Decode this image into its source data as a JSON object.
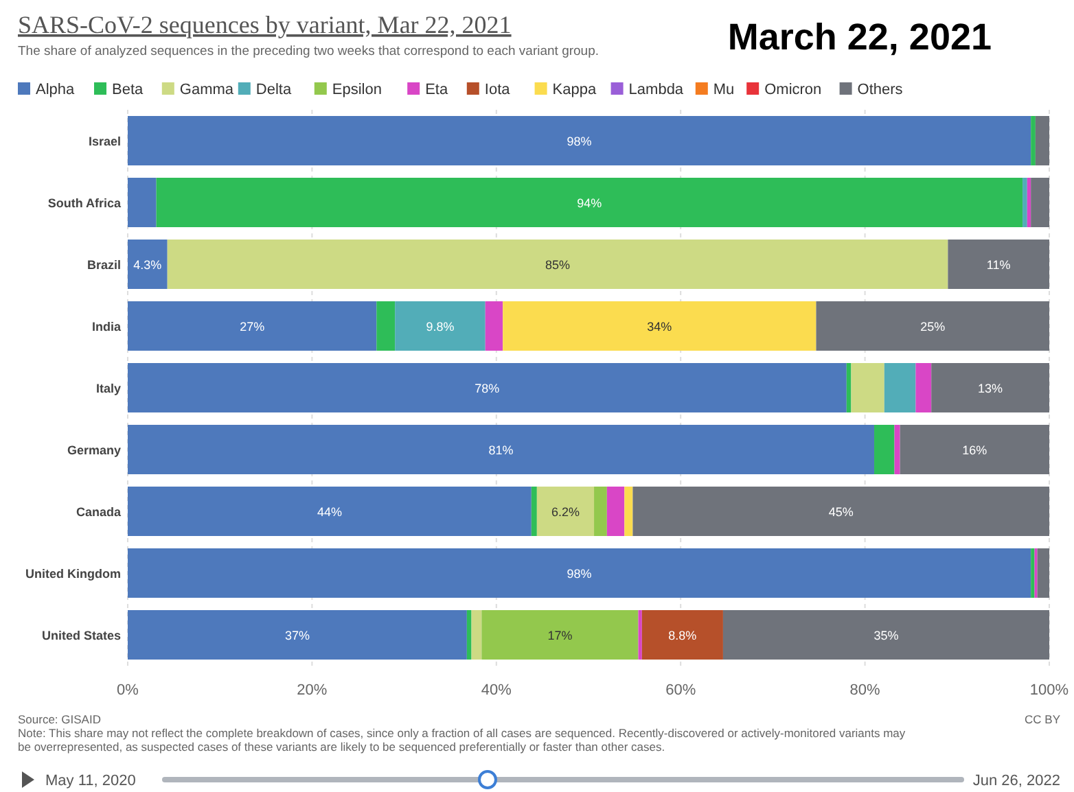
{
  "chart_data": {
    "type": "bar",
    "orientation": "horizontal",
    "stacked": true,
    "title": "SARS-CoV-2 sequences by variant, Mar 22, 2021",
    "subtitle": "The share of analyzed sequences in the preceding two weeks that correspond to each variant group.",
    "categories": [
      "Israel",
      "South Africa",
      "Brazil",
      "India",
      "Italy",
      "Germany",
      "Canada",
      "United Kingdom",
      "United States"
    ],
    "xlim": [
      0,
      100
    ],
    "xticks": [
      {
        "value": 0,
        "label": "0%"
      },
      {
        "value": 20,
        "label": "20%"
      },
      {
        "value": 40,
        "label": "40%"
      },
      {
        "value": 60,
        "label": "60%"
      },
      {
        "value": 80,
        "label": "80%"
      },
      {
        "value": 100,
        "label": "100%"
      }
    ],
    "grid": "x",
    "legend": "top",
    "series": [
      {
        "name": "Alpha",
        "color": "#4e79bc",
        "values": [
          98,
          3.1,
          4.3,
          27,
          78,
          81,
          43.8,
          98,
          36.8
        ],
        "value_labels": [
          "98%",
          null,
          "4.3%",
          "27%",
          "78%",
          "81%",
          "44%",
          "98%",
          "37%"
        ]
      },
      {
        "name": "Beta",
        "color": "#2ebd58",
        "values": [
          0.5,
          94,
          0,
          2,
          0.5,
          2.2,
          0.6,
          0.4,
          0.5
        ],
        "value_labels": [
          null,
          "94%",
          null,
          null,
          null,
          null,
          null,
          null,
          null
        ]
      },
      {
        "name": "Gamma",
        "color": "#cdda84",
        "values": [
          0,
          0,
          84.7,
          0,
          3.6,
          0,
          6.2,
          0,
          1.1
        ],
        "value_labels": [
          null,
          null,
          "85%",
          null,
          null,
          null,
          "6.2%",
          null,
          null
        ]
      },
      {
        "name": "Delta",
        "color": "#52adb8",
        "values": [
          0,
          0.5,
          0,
          9.8,
          3.4,
          0,
          0,
          0,
          0
        ],
        "value_labels": [
          null,
          null,
          null,
          "9.8%",
          null,
          null,
          null,
          null,
          null
        ]
      },
      {
        "name": "Epsilon",
        "color": "#93c84d",
        "values": [
          0,
          0,
          0,
          0,
          0,
          0,
          1.4,
          0,
          17
        ],
        "value_labels": [
          null,
          null,
          null,
          null,
          null,
          null,
          null,
          null,
          "17%"
        ]
      },
      {
        "name": "Eta",
        "color": "#d946c6",
        "values": [
          0,
          0.4,
          0,
          1.9,
          1.7,
          0.6,
          1.9,
          0.3,
          0.4
        ],
        "value_labels": [
          null,
          null,
          null,
          null,
          null,
          null,
          null,
          null,
          null
        ]
      },
      {
        "name": "Iota",
        "color": "#b6502a",
        "values": [
          0,
          0,
          0,
          0,
          0,
          0,
          0,
          0,
          8.8
        ],
        "value_labels": [
          null,
          null,
          null,
          null,
          null,
          null,
          null,
          null,
          "8.8%"
        ]
      },
      {
        "name": "Kappa",
        "color": "#fbdc4f",
        "values": [
          0,
          0,
          0,
          34,
          0,
          0,
          0.9,
          0,
          0
        ],
        "value_labels": [
          null,
          null,
          null,
          "34%",
          null,
          null,
          null,
          null,
          null
        ]
      },
      {
        "name": "Lambda",
        "color": "#9a5fd8",
        "values": [
          0,
          0,
          0,
          0,
          0,
          0,
          0,
          0,
          0
        ]
      },
      {
        "name": "Mu",
        "color": "#f47c20",
        "values": [
          0,
          0,
          0,
          0,
          0,
          0,
          0,
          0,
          0
        ]
      },
      {
        "name": "Omicron",
        "color": "#e8333a",
        "values": [
          0,
          0,
          0,
          0,
          0,
          0,
          0,
          0,
          0
        ]
      },
      {
        "name": "Others",
        "color": "#6f737b",
        "values": [
          1.5,
          2,
          11,
          25.3,
          12.8,
          16.2,
          45.2,
          1.3,
          35.4
        ],
        "value_labels": [
          null,
          null,
          "11%",
          "25%",
          "13%",
          "16%",
          "45%",
          null,
          "35%"
        ]
      }
    ],
    "annotations": [
      "March 22, 2021",
      "Source: GISAID",
      "CC BY",
      "Note: This share may not reflect the complete breakdown of cases, since only a fraction of all cases are sequenced. Recently-discovered or actively-monitored variants may be overrepresented, as suspected cases of these variants are likely to be sequenced preferentially or faster than other cases.",
      "May 11, 2020",
      "Jun 26, 2022"
    ]
  }
}
